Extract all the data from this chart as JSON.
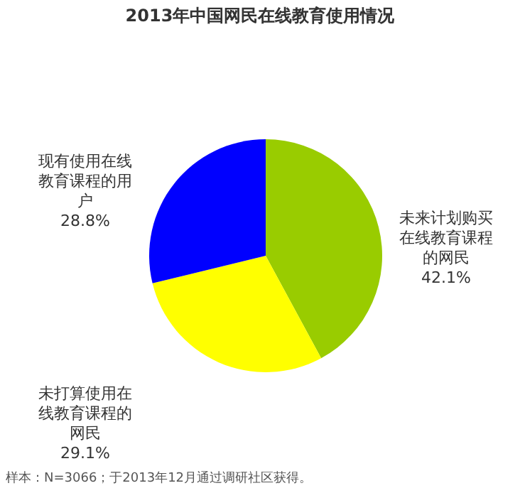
{
  "chart_data": {
    "type": "pie",
    "title": "2013年中国网民在线教育使用情况",
    "categories": [
      "未来计划购买在线教育课程的网民",
      "未打算使用在线教育课程的网民",
      "现有使用在线教育课程的用户"
    ],
    "values": [
      42.1,
      29.1,
      28.8
    ],
    "value_labels": [
      "42.1%",
      "29.1%",
      "28.8%"
    ],
    "colors": [
      "#99cc00",
      "#ffff00",
      "#0000ff"
    ],
    "annotations": [
      "样本：N=3066；于2013年12月通过调研社区获得。"
    ]
  }
}
